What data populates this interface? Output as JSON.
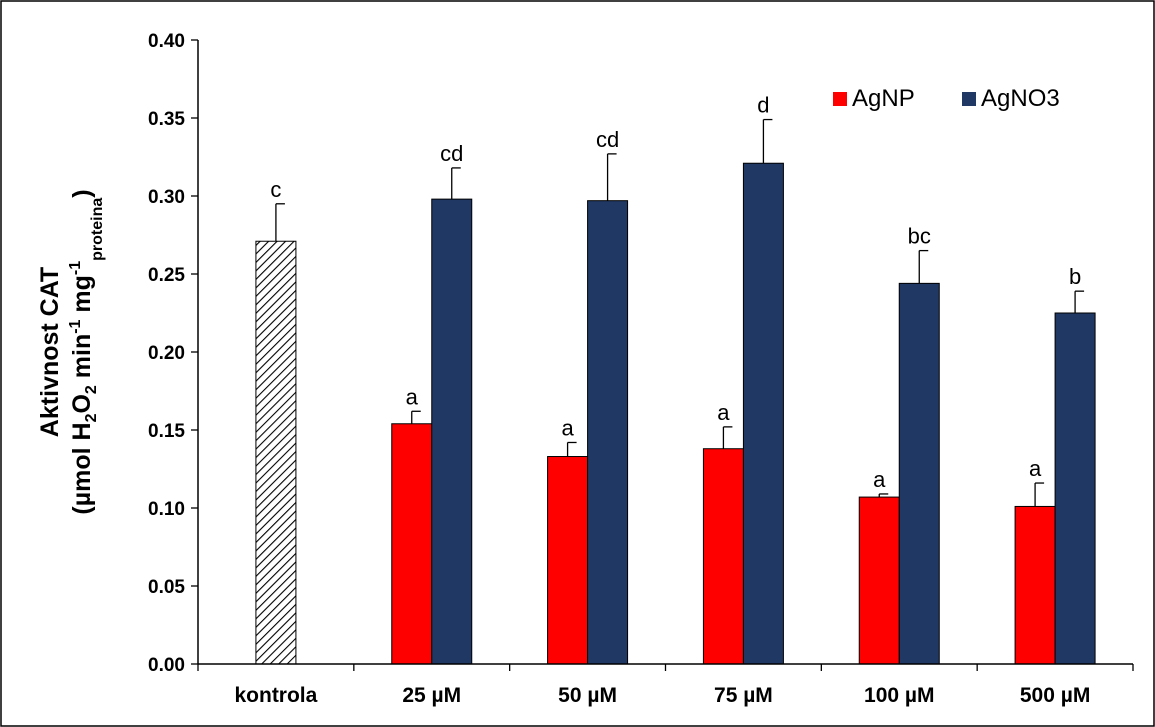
{
  "chart_data": {
    "type": "bar",
    "categories": [
      "kontrola",
      "25 µM",
      "50 µM",
      "75 µM",
      "100 µM",
      "500 µM"
    ],
    "ylabel": {
      "line1": "Aktivnost CAT",
      "line2": {
        "p1": "(µmol H",
        "s1": "2",
        "p2": "O",
        "s2": "2",
        "p3": " min",
        "sup1": "-1",
        "p4": " mg",
        "sup2": "-1",
        "sub3": "proteina",
        "p5": ")"
      }
    },
    "ylim": [
      0,
      0.4
    ],
    "yticks": [
      "0.00",
      "0.05",
      "0.10",
      "0.15",
      "0.20",
      "0.25",
      "0.30",
      "0.35",
      "0.40"
    ],
    "legend_position": "top-right",
    "control": {
      "value": 0.271,
      "error": 0.024,
      "label": "c",
      "pattern": "hatched"
    },
    "series": [
      {
        "name": "AgNP",
        "color": "#ff0000",
        "values": [
          null,
          0.154,
          0.133,
          0.138,
          0.107,
          0.101
        ],
        "errors": [
          null,
          0.008,
          0.009,
          0.014,
          0.002,
          0.015
        ],
        "labels": [
          "",
          "a",
          "a",
          "a",
          "a",
          "a"
        ]
      },
      {
        "name": "AgNO3",
        "color": "#1f3864",
        "values": [
          null,
          0.298,
          0.297,
          0.321,
          0.244,
          0.225
        ],
        "errors": [
          null,
          0.02,
          0.03,
          0.028,
          0.021,
          0.014
        ],
        "labels": [
          "",
          "cd",
          "cd",
          "d",
          "bc",
          "b"
        ]
      }
    ]
  }
}
